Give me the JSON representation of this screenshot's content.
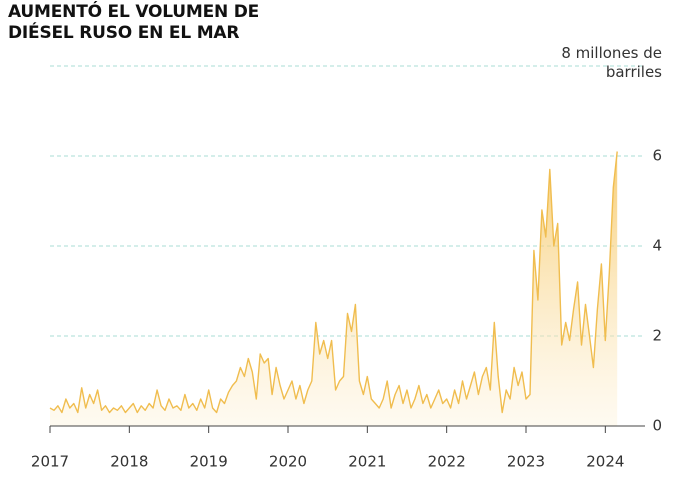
{
  "chart_data": {
    "type": "area",
    "title": "AUMENTÓ EL VOLUMEN DE DIÉSEL RUSO EN EL MAR",
    "color": "#f0bd4f",
    "xlim": [
      2017,
      2024.5
    ],
    "xticks": [
      2017,
      2018,
      2019,
      2020,
      2021,
      2022,
      2023,
      2024
    ],
    "ylim": [
      0,
      8
    ],
    "yticks": [
      0,
      2,
      4,
      6,
      {
        "value": 8,
        "label": "8 millones de barriles"
      }
    ],
    "grid": true,
    "x": [
      2017,
      2017.05,
      2017.1,
      2017.15,
      2017.2,
      2017.25,
      2017.3,
      2017.35,
      2017.4,
      2017.45,
      2017.5,
      2017.55,
      2017.6,
      2017.65,
      2017.7,
      2017.75,
      2017.8,
      2017.85,
      2017.9,
      2017.95,
      2018,
      2018.05,
      2018.1,
      2018.15,
      2018.2,
      2018.25,
      2018.3,
      2018.35,
      2018.4,
      2018.45,
      2018.5,
      2018.55,
      2018.6,
      2018.65,
      2018.7,
      2018.75,
      2018.8,
      2018.85,
      2018.9,
      2018.95,
      2019,
      2019.05,
      2019.1,
      2019.15,
      2019.2,
      2019.25,
      2019.3,
      2019.35,
      2019.4,
      2019.45,
      2019.5,
      2019.55,
      2019.6,
      2019.65,
      2019.7,
      2019.75,
      2019.8,
      2019.85,
      2019.9,
      2019.95,
      2020,
      2020.05,
      2020.1,
      2020.15,
      2020.2,
      2020.25,
      2020.3,
      2020.35,
      2020.4,
      2020.45,
      2020.5,
      2020.55,
      2020.6,
      2020.65,
      2020.7,
      2020.75,
      2020.8,
      2020.85,
      2020.9,
      2020.95,
      2021,
      2021.05,
      2021.1,
      2021.15,
      2021.2,
      2021.25,
      2021.3,
      2021.35,
      2021.4,
      2021.45,
      2021.5,
      2021.55,
      2021.6,
      2021.65,
      2021.7,
      2021.75,
      2021.8,
      2021.85,
      2021.9,
      2021.95,
      2022,
      2022.05,
      2022.1,
      2022.15,
      2022.2,
      2022.25,
      2022.3,
      2022.35,
      2022.4,
      2022.45,
      2022.5,
      2022.55,
      2022.6,
      2022.65,
      2022.7,
      2022.75,
      2022.8,
      2022.85,
      2022.9,
      2022.95,
      2023,
      2023.05,
      2023.1,
      2023.15,
      2023.2,
      2023.25,
      2023.3,
      2023.35,
      2023.4,
      2023.45,
      2023.5,
      2023.55,
      2023.6,
      2023.65,
      2023.7,
      2023.75,
      2023.8,
      2023.85,
      2023.9,
      2023.95,
      2024,
      2024.05,
      2024.1,
      2024.15
    ],
    "values": [
      0.4,
      0.35,
      0.45,
      0.3,
      0.6,
      0.4,
      0.5,
      0.3,
      0.85,
      0.4,
      0.7,
      0.5,
      0.8,
      0.35,
      0.45,
      0.3,
      0.4,
      0.35,
      0.45,
      0.3,
      0.4,
      0.5,
      0.3,
      0.45,
      0.35,
      0.5,
      0.4,
      0.8,
      0.45,
      0.35,
      0.6,
      0.4,
      0.45,
      0.35,
      0.7,
      0.4,
      0.5,
      0.35,
      0.6,
      0.4,
      0.8,
      0.4,
      0.3,
      0.6,
      0.5,
      0.75,
      0.9,
      1.0,
      1.3,
      1.1,
      1.5,
      1.2,
      0.6,
      1.6,
      1.4,
      1.5,
      0.7,
      1.3,
      0.9,
      0.6,
      0.8,
      1.0,
      0.6,
      0.9,
      0.5,
      0.8,
      1.0,
      2.3,
      1.6,
      1.9,
      1.5,
      1.9,
      0.8,
      1.0,
      1.1,
      2.5,
      2.1,
      2.7,
      1.0,
      0.7,
      1.1,
      0.6,
      0.5,
      0.4,
      0.6,
      1.0,
      0.4,
      0.7,
      0.9,
      0.5,
      0.8,
      0.4,
      0.6,
      0.9,
      0.5,
      0.7,
      0.4,
      0.6,
      0.8,
      0.5,
      0.6,
      0.4,
      0.8,
      0.5,
      1.0,
      0.6,
      0.9,
      1.2,
      0.7,
      1.1,
      1.3,
      0.8,
      2.3,
      1.1,
      0.3,
      0.8,
      0.6,
      1.3,
      0.9,
      1.2,
      0.6,
      0.7,
      3.9,
      2.8,
      4.8,
      4.2,
      5.7,
      4.0,
      4.5,
      1.8,
      2.3,
      1.9,
      2.6,
      3.2,
      1.8,
      2.7,
      2.0,
      1.3,
      2.6,
      3.6,
      1.9,
      3.4,
      5.3,
      6.1
    ]
  }
}
